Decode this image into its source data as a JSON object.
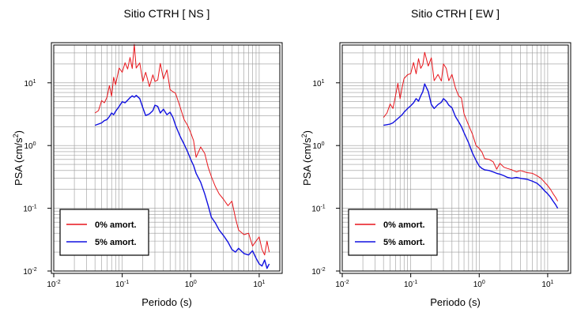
{
  "colors": {
    "red": "#e8151b",
    "blue": "#1010e0",
    "frame": "#000000",
    "grid": "#9a9a9a"
  },
  "chart_data": [
    {
      "type": "line",
      "title": "Sitio CTRH [ NS ]",
      "xlabel": "Periodo (s)",
      "ylabel": "PSA (cm/s",
      "ylabel_sup": "2",
      "ylabel_tail": ")",
      "xscale": "log",
      "yscale": "log",
      "xlim": [
        0.01,
        20
      ],
      "ylim": [
        0.01,
        40
      ],
      "grid": true,
      "legend_placement": "bottom-left",
      "xticks": [
        {
          "value": 0.01,
          "base": "10",
          "exp": "-2"
        },
        {
          "value": 0.1,
          "base": "10",
          "exp": "-1"
        },
        {
          "value": 1,
          "base": "10",
          "exp": "0"
        },
        {
          "value": 10,
          "base": "10",
          "exp": "1"
        }
      ],
      "yticks": [
        {
          "value": 0.01,
          "base": "10",
          "exp": "-2"
        },
        {
          "value": 0.1,
          "base": "10",
          "exp": "-1"
        },
        {
          "value": 1,
          "base": "10",
          "exp": "0"
        },
        {
          "value": 10,
          "base": "10",
          "exp": "1"
        }
      ],
      "series": [
        {
          "name": "0% amort.",
          "color": "#e8151b",
          "x": [
            0.04,
            0.045,
            0.05,
            0.055,
            0.06,
            0.065,
            0.07,
            0.075,
            0.08,
            0.09,
            0.1,
            0.11,
            0.12,
            0.13,
            0.14,
            0.15,
            0.16,
            0.18,
            0.2,
            0.22,
            0.25,
            0.28,
            0.3,
            0.33,
            0.36,
            0.4,
            0.45,
            0.5,
            0.55,
            0.6,
            0.7,
            0.8,
            0.9,
            1.0,
            1.1,
            1.2,
            1.4,
            1.6,
            1.8,
            2.0,
            2.3,
            2.6,
            3.0,
            3.5,
            4.0,
            4.5,
            5.0,
            6.0,
            7.0,
            8.0,
            9.0,
            10.0,
            11.0,
            12.0,
            13.0,
            14.0
          ],
          "y": [
            3.3,
            3.6,
            5.2,
            4.8,
            5.9,
            9.0,
            6.1,
            12.3,
            9.3,
            17.2,
            14.7,
            20.8,
            16.6,
            25.3,
            16.9,
            41.0,
            17.2,
            20.7,
            10.5,
            14.7,
            8.7,
            13.4,
            10.5,
            11.1,
            20.4,
            11.5,
            16.1,
            7.8,
            7.2,
            6.8,
            4.1,
            2.6,
            2.1,
            1.6,
            1.2,
            0.65,
            0.95,
            0.75,
            0.45,
            0.32,
            0.22,
            0.17,
            0.14,
            0.11,
            0.13,
            0.07,
            0.045,
            0.038,
            0.04,
            0.025,
            0.03,
            0.035,
            0.022,
            0.018,
            0.03,
            0.02
          ]
        },
        {
          "name": "5% amort.",
          "color": "#1010e0",
          "x": [
            0.04,
            0.045,
            0.05,
            0.055,
            0.06,
            0.065,
            0.07,
            0.075,
            0.08,
            0.09,
            0.1,
            0.11,
            0.12,
            0.13,
            0.14,
            0.15,
            0.16,
            0.18,
            0.2,
            0.22,
            0.25,
            0.28,
            0.3,
            0.33,
            0.36,
            0.4,
            0.45,
            0.5,
            0.55,
            0.6,
            0.7,
            0.8,
            0.9,
            1.0,
            1.1,
            1.2,
            1.4,
            1.6,
            1.8,
            2.0,
            2.3,
            2.6,
            3.0,
            3.5,
            4.0,
            4.5,
            5.0,
            6.0,
            7.0,
            8.0,
            9.0,
            10.0,
            11.0,
            12.0,
            13.0,
            14.0
          ],
          "y": [
            2.1,
            2.2,
            2.3,
            2.5,
            2.6,
            2.9,
            3.3,
            3.1,
            3.5,
            4.2,
            5.0,
            4.8,
            5.3,
            5.8,
            6.2,
            5.9,
            6.3,
            5.6,
            4.0,
            3.0,
            3.2,
            3.6,
            4.4,
            4.2,
            3.3,
            3.8,
            3.1,
            3.4,
            2.8,
            2.1,
            1.4,
            1.05,
            0.8,
            0.6,
            0.48,
            0.36,
            0.26,
            0.17,
            0.11,
            0.072,
            0.058,
            0.045,
            0.037,
            0.029,
            0.022,
            0.02,
            0.023,
            0.019,
            0.018,
            0.021,
            0.016,
            0.013,
            0.012,
            0.015,
            0.011,
            0.013
          ]
        }
      ]
    },
    {
      "type": "line",
      "title": "Sitio CTRH [ EW ]",
      "xlabel": "Periodo (s)",
      "ylabel": "PSA (cm/s",
      "ylabel_sup": "2",
      "ylabel_tail": ")",
      "xscale": "log",
      "yscale": "log",
      "xlim": [
        0.01,
        20
      ],
      "ylim": [
        0.01,
        40
      ],
      "grid": true,
      "legend_placement": "bottom-left",
      "xticks": [
        {
          "value": 0.01,
          "base": "10",
          "exp": "-2"
        },
        {
          "value": 0.1,
          "base": "10",
          "exp": "-1"
        },
        {
          "value": 1,
          "base": "10",
          "exp": "0"
        },
        {
          "value": 10,
          "base": "10",
          "exp": "1"
        }
      ],
      "yticks": [
        {
          "value": 0.01,
          "base": "10",
          "exp": "-2"
        },
        {
          "value": 0.1,
          "base": "10",
          "exp": "-1"
        },
        {
          "value": 1,
          "base": "10",
          "exp": "0"
        },
        {
          "value": 10,
          "base": "10",
          "exp": "1"
        }
      ],
      "series": [
        {
          "name": "0% amort.",
          "color": "#e8151b",
          "x": [
            0.04,
            0.045,
            0.05,
            0.055,
            0.06,
            0.065,
            0.07,
            0.075,
            0.08,
            0.09,
            0.1,
            0.11,
            0.12,
            0.13,
            0.14,
            0.15,
            0.16,
            0.18,
            0.2,
            0.22,
            0.25,
            0.28,
            0.3,
            0.33,
            0.36,
            0.4,
            0.45,
            0.5,
            0.55,
            0.6,
            0.7,
            0.8,
            0.9,
            1.0,
            1.1,
            1.2,
            1.4,
            1.6,
            1.8,
            2.0,
            2.3,
            2.6,
            3.0,
            3.5,
            4.0,
            5.0,
            6.0,
            7.0,
            8.0,
            9.0,
            10.0,
            11.0,
            12.0,
            13.0,
            14.0
          ],
          "y": [
            2.8,
            3.3,
            4.6,
            3.9,
            6.2,
            9.8,
            5.6,
            8.5,
            11.7,
            13.5,
            14.0,
            21.1,
            13.9,
            24.2,
            17.0,
            19.5,
            30.6,
            18.5,
            25.0,
            10.8,
            13.6,
            10.7,
            20.0,
            17.0,
            10.8,
            13.6,
            8.3,
            6.2,
            5.7,
            3.2,
            2.1,
            1.5,
            1.0,
            0.9,
            0.78,
            0.62,
            0.6,
            0.55,
            0.42,
            0.52,
            0.45,
            0.43,
            0.41,
            0.38,
            0.4,
            0.37,
            0.36,
            0.33,
            0.3,
            0.26,
            0.23,
            0.2,
            0.17,
            0.15,
            0.13
          ]
        },
        {
          "name": "5% amort.",
          "color": "#1010e0",
          "x": [
            0.04,
            0.045,
            0.05,
            0.055,
            0.06,
            0.065,
            0.07,
            0.075,
            0.08,
            0.09,
            0.1,
            0.11,
            0.12,
            0.13,
            0.14,
            0.15,
            0.16,
            0.18,
            0.2,
            0.22,
            0.25,
            0.28,
            0.3,
            0.33,
            0.36,
            0.4,
            0.45,
            0.5,
            0.55,
            0.6,
            0.7,
            0.8,
            0.9,
            1.0,
            1.1,
            1.2,
            1.4,
            1.6,
            1.8,
            2.0,
            2.3,
            2.6,
            3.0,
            3.5,
            4.0,
            5.0,
            6.0,
            7.0,
            8.0,
            9.0,
            10.0,
            11.0,
            12.0,
            13.0,
            14.0
          ],
          "y": [
            2.1,
            2.15,
            2.2,
            2.3,
            2.5,
            2.7,
            2.9,
            3.1,
            3.4,
            3.9,
            4.3,
            4.8,
            5.6,
            5.1,
            6.2,
            7.2,
            9.6,
            7.3,
            4.5,
            3.9,
            4.5,
            4.9,
            5.6,
            5.1,
            4.4,
            4.0,
            2.9,
            2.4,
            2.0,
            1.6,
            1.1,
            0.75,
            0.58,
            0.47,
            0.43,
            0.41,
            0.4,
            0.38,
            0.36,
            0.35,
            0.33,
            0.31,
            0.3,
            0.31,
            0.3,
            0.29,
            0.27,
            0.25,
            0.22,
            0.19,
            0.17,
            0.15,
            0.13,
            0.115,
            0.1
          ]
        }
      ]
    }
  ]
}
